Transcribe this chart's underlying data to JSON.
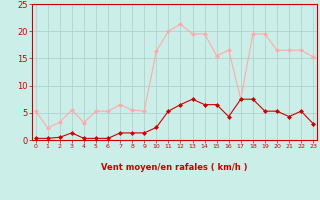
{
  "x": [
    0,
    1,
    2,
    3,
    4,
    5,
    6,
    7,
    8,
    9,
    10,
    11,
    12,
    13,
    14,
    15,
    16,
    17,
    18,
    19,
    20,
    21,
    22,
    23
  ],
  "rafales": [
    5.3,
    2.2,
    3.3,
    5.5,
    3.2,
    5.3,
    5.3,
    6.5,
    5.5,
    5.3,
    16.3,
    20.0,
    21.3,
    19.5,
    19.5,
    15.5,
    16.5,
    7.5,
    19.5,
    19.5,
    16.5,
    16.5,
    16.5,
    15.3
  ],
  "moyen": [
    0.3,
    0.3,
    0.5,
    1.3,
    0.3,
    0.3,
    0.3,
    1.3,
    1.3,
    1.3,
    2.3,
    5.3,
    6.5,
    7.5,
    6.5,
    6.5,
    4.3,
    7.5,
    7.5,
    5.3,
    5.3,
    4.3,
    5.3,
    3.0
  ],
  "rafales_color": "#ffaaaa",
  "moyen_color": "#cc0000",
  "bg_color": "#cceee8",
  "grid_color": "#aacccc",
  "xlabel": "Vent moyen/en rafales ( km/h )",
  "xlabel_color": "#cc0000",
  "tick_color": "#cc0000",
  "ylim": [
    0,
    25
  ],
  "yticks": [
    0,
    5,
    10,
    15,
    20,
    25
  ],
  "marker": "D",
  "markersize": 2.0
}
